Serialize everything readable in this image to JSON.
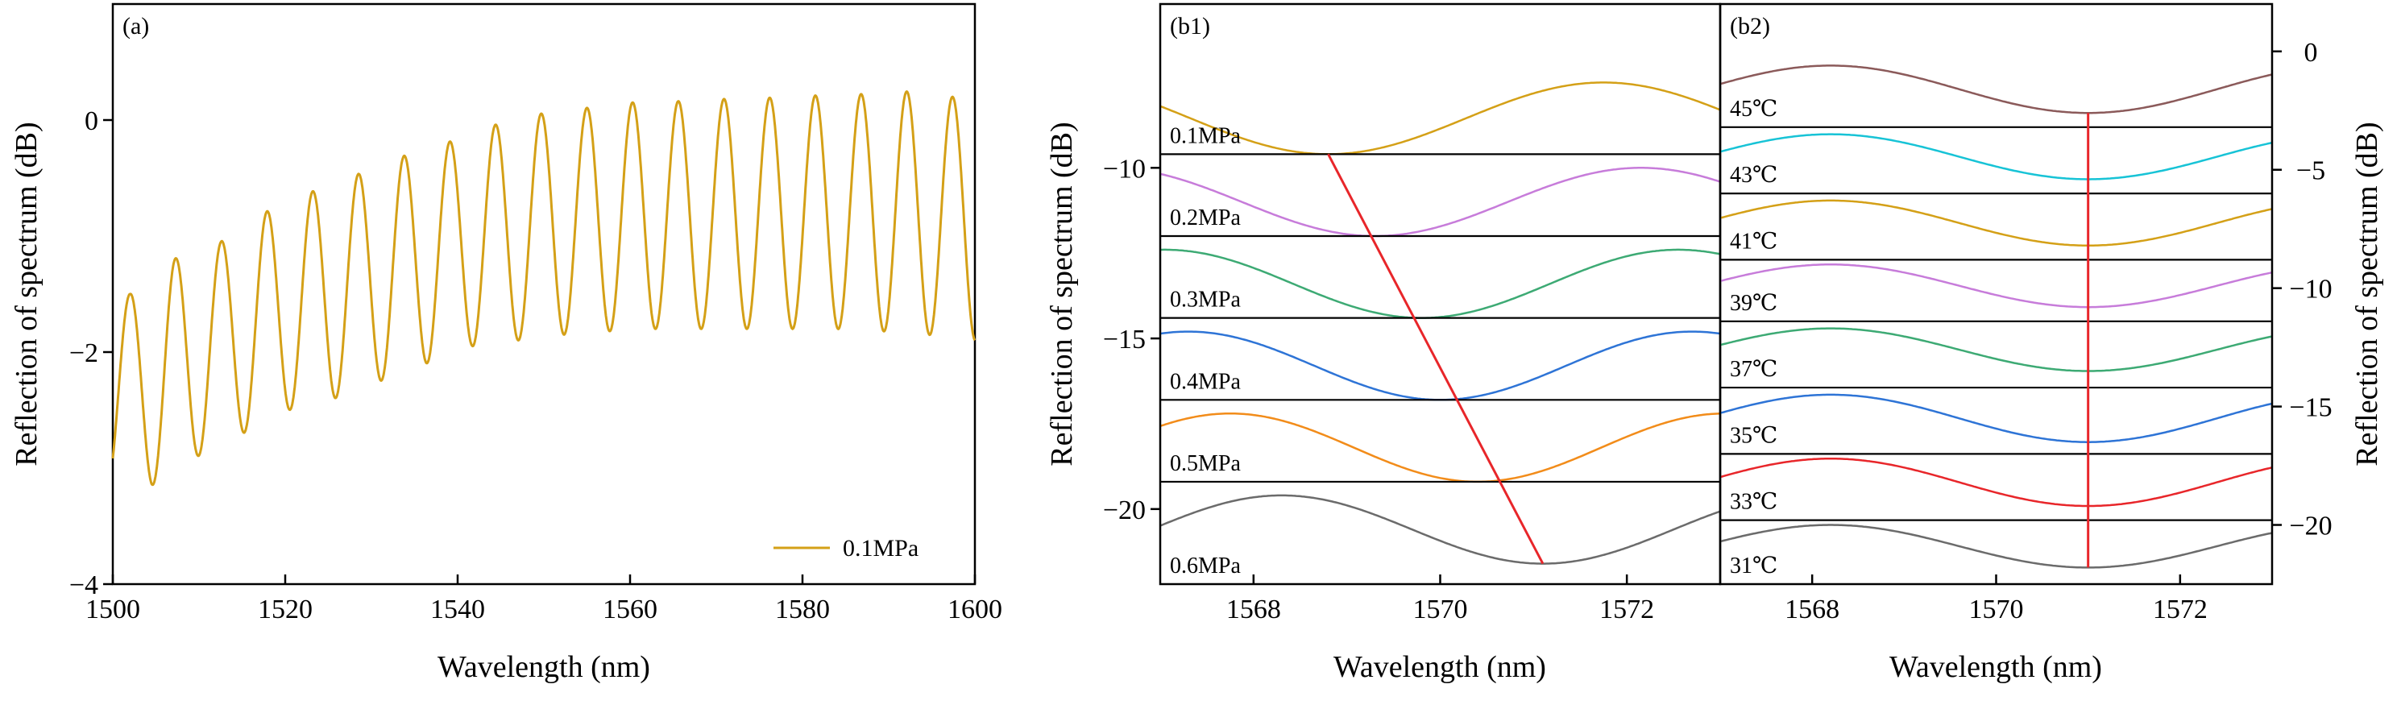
{
  "chart_data": [
    {
      "id": "a",
      "type": "line",
      "panel_label": "(a)",
      "xlabel": "Wavelength (nm)",
      "ylabel": "Reflection of spectrum (dB)",
      "xlim": [
        1500,
        1600
      ],
      "ylim": [
        -4,
        1
      ],
      "xticks": [
        "1500",
        "1520",
        "1540",
        "1560",
        "1580",
        "1600"
      ],
      "yticks": [
        "−4",
        "−2",
        "0"
      ],
      "legend": "bottom-right",
      "series": [
        {
          "name": "0.1MPa",
          "color": "#D4A017",
          "period_nm": 5.3,
          "peaks": [
            [
              1502,
              -1.5
            ],
            [
              1507,
              -1.2
            ],
            [
              1512.5,
              -1.05
            ],
            [
              1517.5,
              -0.8
            ],
            [
              1523,
              -0.62
            ],
            [
              1528,
              -0.48
            ],
            [
              1533.3,
              -0.32
            ],
            [
              1538.6,
              -0.2
            ],
            [
              1543.9,
              -0.05
            ],
            [
              1549.2,
              0.05
            ],
            [
              1554.5,
              0.1
            ],
            [
              1559.8,
              0.15
            ],
            [
              1565.1,
              0.16
            ],
            [
              1570.4,
              0.18
            ],
            [
              1575.7,
              0.19
            ],
            [
              1581,
              0.21
            ],
            [
              1586.3,
              0.22
            ],
            [
              1591.6,
              0.25
            ],
            [
              1596.9,
              0.2
            ]
          ],
          "troughs": [
            [
              1504.5,
              -3.15
            ],
            [
              1509.8,
              -2.9
            ],
            [
              1515.1,
              -2.7
            ],
            [
              1520.4,
              -2.5
            ],
            [
              1525.7,
              -2.4
            ],
            [
              1531,
              -2.25
            ],
            [
              1536.3,
              -2.1
            ],
            [
              1541.6,
              -1.95
            ],
            [
              1546.9,
              -1.9
            ],
            [
              1552.2,
              -1.85
            ],
            [
              1557.5,
              -1.82
            ],
            [
              1562.8,
              -1.8
            ],
            [
              1568.1,
              -1.8
            ],
            [
              1573.4,
              -1.8
            ],
            [
              1578.7,
              -1.8
            ],
            [
              1584,
              -1.8
            ],
            [
              1589.3,
              -1.82
            ],
            [
              1594.6,
              -1.85
            ],
            [
              1599.9,
              -1.9
            ]
          ]
        }
      ]
    },
    {
      "id": "b1",
      "type": "line",
      "panel_label": "(b1)",
      "xlabel": "Wavelength (nm)",
      "ylabel": "Reflection of spectrum (dB)",
      "xlim": [
        1567,
        1573
      ],
      "ylim": [
        -22.2,
        -5.2
      ],
      "xticks": [
        "1568",
        "1570",
        "1572"
      ],
      "yticks": [
        "−20",
        "−15",
        "−10"
      ],
      "series": [
        {
          "name": "0.1MPa",
          "color": "#D4A017",
          "trough_nm": 1568.8,
          "max_db": -7.5,
          "min_db": -9.6,
          "period_nm": 5.9
        },
        {
          "name": "0.2MPa",
          "color": "#C77CDA",
          "trough_nm": 1569.3,
          "max_db": -10.0,
          "min_db": -12.0,
          "period_nm": 5.7
        },
        {
          "name": "0.3MPa",
          "color": "#3DAA74",
          "trough_nm": 1569.8,
          "max_db": -12.4,
          "min_db": -14.4,
          "period_nm": 5.5
        },
        {
          "name": "0.4MPa",
          "color": "#2E74D6",
          "trough_nm": 1570.0,
          "max_db": -14.8,
          "min_db": -16.8,
          "period_nm": 5.4
        },
        {
          "name": "0.5MPa",
          "color": "#F28C1A",
          "trough_nm": 1570.4,
          "max_db": -17.2,
          "min_db": -19.2,
          "period_nm": 5.3
        },
        {
          "name": "0.6MPa",
          "color": "#6B6B6B",
          "trough_nm": 1571.1,
          "max_db": -19.6,
          "min_db": -21.6,
          "period_nm": 5.6
        }
      ],
      "trend_line": {
        "color": "#E8262A",
        "from": [
          1568.8,
          -9.6
        ],
        "to": [
          1571.1,
          -21.6
        ]
      },
      "band_boundaries_db": [
        -9.6,
        -12.0,
        -14.4,
        -16.8,
        -19.2
      ]
    },
    {
      "id": "b2",
      "type": "line",
      "panel_label": "(b2)",
      "xlabel": "Wavelength (nm)",
      "ylabel": "Reflection of spectrum (dB)",
      "xlim": [
        1567,
        1573
      ],
      "ylim": [
        -22.5,
        2
      ],
      "xticks": [
        "1568",
        "1570",
        "1572"
      ],
      "yticks": [
        "−20",
        "−15",
        "−10",
        "−5",
        "0"
      ],
      "yaxis_side": "right",
      "series": [
        {
          "name": "45℃",
          "color": "#8B5A5A",
          "trough_nm": 1571.0,
          "max_db": -0.6,
          "min_db": -2.6,
          "period_nm": 5.6
        },
        {
          "name": "43℃",
          "color": "#17C3D6",
          "trough_nm": 1571.0,
          "max_db": -3.5,
          "min_db": -5.4,
          "period_nm": 5.6
        },
        {
          "name": "41℃",
          "color": "#D4A017",
          "trough_nm": 1571.0,
          "max_db": -6.3,
          "min_db": -8.2,
          "period_nm": 5.6
        },
        {
          "name": "39℃",
          "color": "#C77CDA",
          "trough_nm": 1571.0,
          "max_db": -9.0,
          "min_db": -10.8,
          "period_nm": 5.6
        },
        {
          "name": "37℃",
          "color": "#3DAA74",
          "trough_nm": 1571.0,
          "max_db": -11.7,
          "min_db": -13.5,
          "period_nm": 5.6
        },
        {
          "name": "35℃",
          "color": "#2E74D6",
          "trough_nm": 1571.0,
          "max_db": -14.5,
          "min_db": -16.5,
          "period_nm": 5.6
        },
        {
          "name": "33℃",
          "color": "#E8262A",
          "trough_nm": 1571.0,
          "max_db": -17.2,
          "min_db": -19.2,
          "period_nm": 5.6
        },
        {
          "name": "31℃",
          "color": "#6B6B6B",
          "trough_nm": 1571.0,
          "max_db": -20.0,
          "min_db": -21.8,
          "period_nm": 5.6
        }
      ],
      "trend_line": {
        "color": "#E8262A",
        "from": [
          1571.0,
          -2.6
        ],
        "to": [
          1571.0,
          -21.8
        ]
      },
      "band_boundaries_db": [
        -3.2,
        -6.0,
        -8.8,
        -11.4,
        -14.2,
        -17.0,
        -19.8
      ]
    }
  ]
}
